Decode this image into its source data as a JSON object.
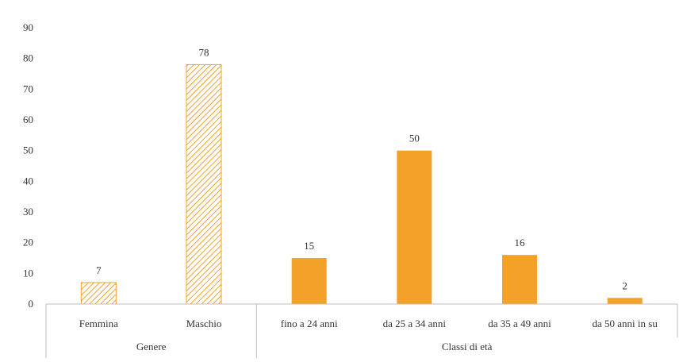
{
  "chart_data": {
    "type": "bar",
    "ylim": [
      0,
      90
    ],
    "yticks": [
      0,
      10,
      20,
      30,
      40,
      50,
      60,
      70,
      80,
      90
    ],
    "grid": false,
    "legend": "none",
    "groups": [
      {
        "name": "Genere",
        "categories": [
          "Femmina",
          "Maschio"
        ],
        "values": [
          7,
          78
        ],
        "pattern": "hatched"
      },
      {
        "name": "Classi di età",
        "categories": [
          "fino a 24 anni",
          "da 25 a 34 anni",
          "da 35 a 49 anni",
          "da 50 anni in su"
        ],
        "values": [
          15,
          50,
          16,
          2
        ],
        "pattern": "solid"
      }
    ],
    "colors": {
      "bar": "#F4A12A",
      "axis": "#bfbfbf",
      "hatch_bg": "#ffffff"
    }
  }
}
